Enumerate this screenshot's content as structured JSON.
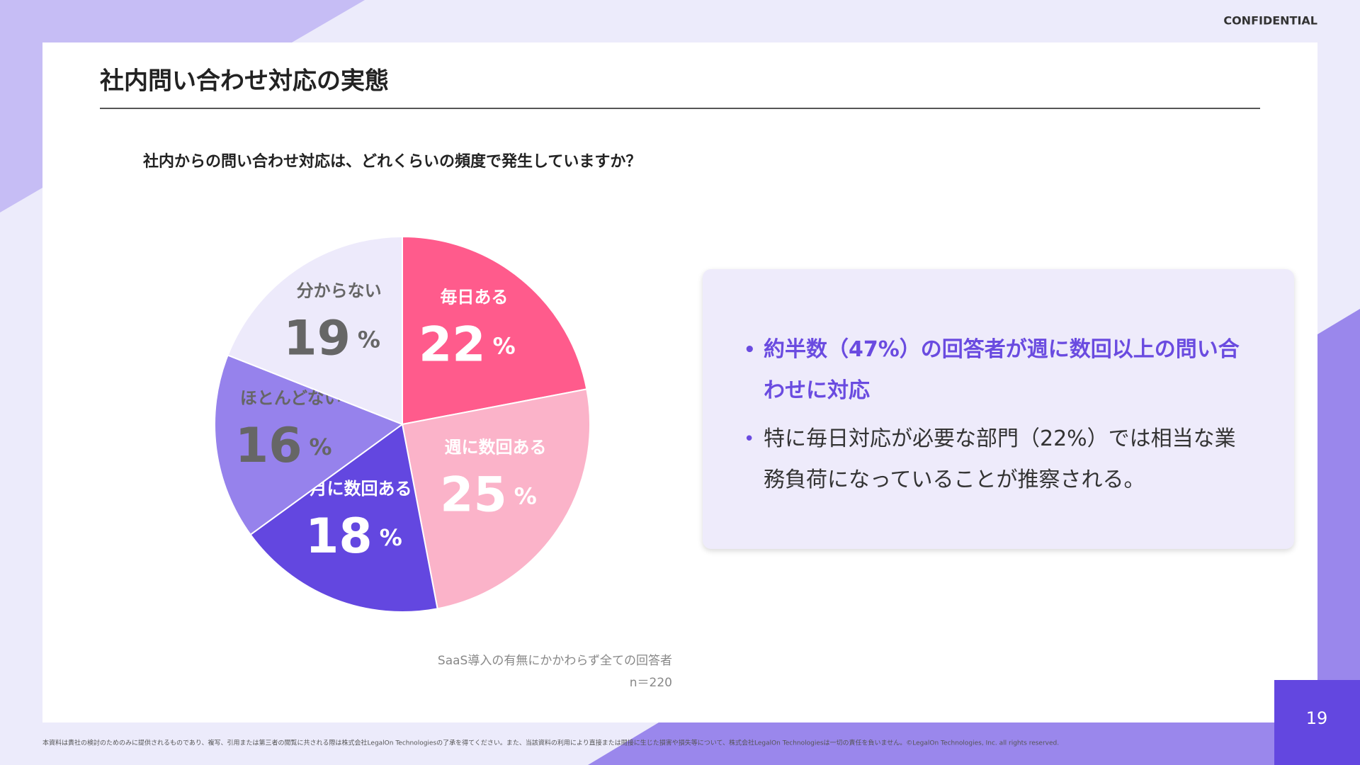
{
  "header": {
    "confidential": "CONFIDENTIAL",
    "title": "社内問い合わせ対応の実態",
    "page_number": "19"
  },
  "chart_data": {
    "type": "pie",
    "title": "社内からの問い合わせ対応は、どれくらいの頻度で発生していますか？",
    "categories": [
      "毎日ある",
      "週に数回ある",
      "月に数回ある",
      "ほとんどない",
      "分からない"
    ],
    "values": [
      22,
      25,
      18,
      16,
      19
    ],
    "unit": "%",
    "colors": [
      "#ff5b8c",
      "#fbb3c9",
      "#6347e0",
      "#9682ec",
      "#edeafb"
    ],
    "label_colors": [
      "#ffffff",
      "#ffffff",
      "#ffffff",
      "#666666",
      "#666666"
    ],
    "notes": [
      "SaaS導入の有無にかかわらず全ての回答者",
      "n＝220"
    ]
  },
  "summary": {
    "bullets": [
      "約半数（47%）の回答者が週に数回以上の問い合わせに対応",
      "特に毎日対応が必要な部門（22%）では相当な業務負荷になっていることが推察される。"
    ]
  },
  "footer": {
    "disclaimer": "本資料は貴社の検討のためのみに提供されるものであり、複写、引用または第三者の閲覧に共される際は株式会社LegalOn Technologiesの了承を得てください。また、当該資料の利用により直接または間接に生じた損害や損失等について、株式会社LegalOn Technologiesは一切の責任を負いません。©LegalOn Technologies, Inc. all rights reserved."
  }
}
